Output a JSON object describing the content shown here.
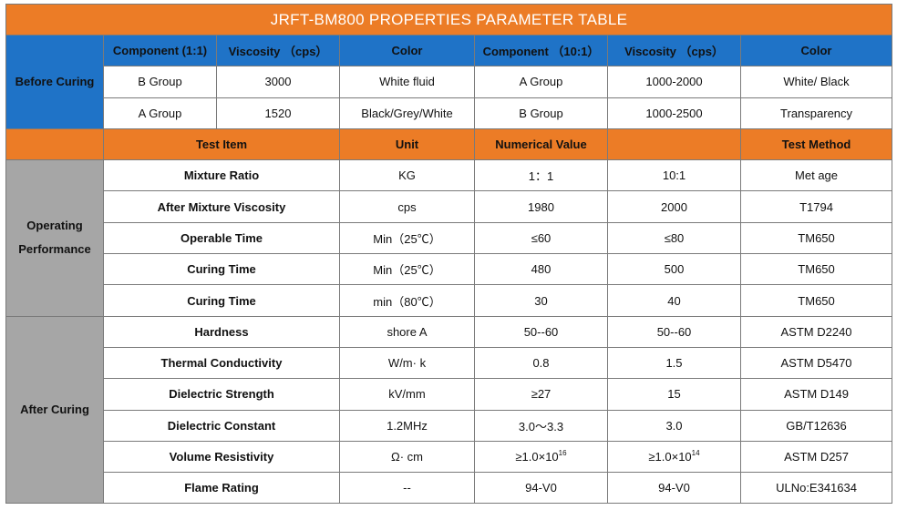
{
  "title": "JRFT-BM800 PROPERTIES PARAMETER TABLE",
  "before_curing": {
    "label": "Before Curing",
    "headers": [
      "Component (1:1)",
      "Viscosity （cps）",
      "Color",
      "Component （10:1）",
      "Viscosity （cps）",
      "Color"
    ],
    "rows": [
      [
        "B Group",
        "3000",
        "White fluid",
        "A Group",
        "1000-2000",
        "White/ Black"
      ],
      [
        "A Group",
        "1520",
        "Black/Grey/White",
        "B Group",
        "1000-2500",
        "Transparency"
      ]
    ]
  },
  "test_header": {
    "test_item": "Test Item",
    "unit": "Unit",
    "numerical_value": "Numerical Value",
    "test_method": "Test Method"
  },
  "operating_performance": {
    "label_line1": "Operating",
    "label_line2": "Performance",
    "rows": [
      {
        "item": "Mixture Ratio",
        "unit": "KG",
        "v1": "1：1",
        "v2": "10:1",
        "method": "Met age"
      },
      {
        "item": "After Mixture Viscosity",
        "unit": "cps",
        "v1": "1980",
        "v2": "2000",
        "method": "T1794"
      },
      {
        "item": "Operable Time",
        "unit": "Min（25℃）",
        "v1": "≤60",
        "v2": "≤80",
        "method": "TM650"
      },
      {
        "item": "Curing Time",
        "unit": "Min（25℃）",
        "v1": "480",
        "v2": "500",
        "method": "TM650"
      },
      {
        "item": "Curing Time",
        "unit": "min（80℃）",
        "v1": "30",
        "v2": "40",
        "method": "TM650"
      }
    ]
  },
  "after_curing": {
    "label": "After Curing",
    "rows": [
      {
        "item": "Hardness",
        "unit": "shore A",
        "v1": "50--60",
        "v2": "50--60",
        "method": "ASTM D2240"
      },
      {
        "item": "Thermal Conductivity",
        "unit": "W/m· k",
        "v1": "0.8",
        "v2": "1.5",
        "method": "ASTM D5470"
      },
      {
        "item": "Dielectric Strength",
        "unit": "kV/mm",
        "v1": "≥27",
        "v2": "15",
        "method": "ASTM D149"
      },
      {
        "item": "Dielectric Constant",
        "unit": "1.2MHz",
        "v1": "3.0～3.3",
        "v2": "3.0",
        "method": "GB/T12636"
      },
      {
        "item": "Volume Resistivity",
        "unit": "Ω· cm",
        "v1_base": "≥1.0×10",
        "v1_exp": "16",
        "v2_base": "≥1.0×10",
        "v2_exp": "14",
        "method": "ASTM D257"
      },
      {
        "item": "Flame Rating",
        "unit": "--",
        "v1": "94-V0",
        "v2": "94-V0",
        "method": "ULNo:E341634"
      }
    ]
  }
}
